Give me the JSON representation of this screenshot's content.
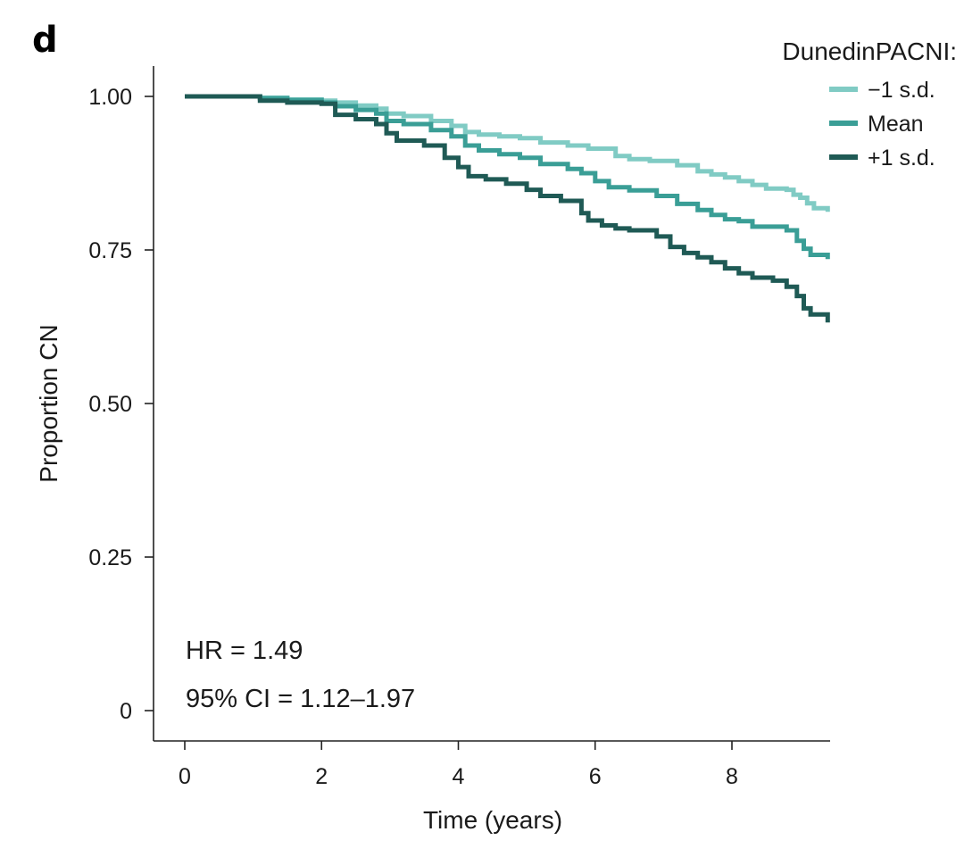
{
  "panel_label": "d",
  "chart_data": {
    "type": "line",
    "step": true,
    "xlabel": "Time (years)",
    "ylabel": "Proportion CN",
    "xlim": [
      0,
      9.4
    ],
    "ylim": [
      0,
      1.0
    ],
    "x_ticks": [
      0,
      2,
      4,
      6,
      8
    ],
    "x_tick_labels": [
      "0",
      "2",
      "4",
      "6",
      "8"
    ],
    "y_ticks": [
      0,
      0.25,
      0.5,
      0.75,
      1.0
    ],
    "y_tick_labels": [
      "0",
      "0.25",
      "0.50",
      "0.75",
      "1.00"
    ],
    "grid": false,
    "legend": {
      "title": "DunedinPACNI:",
      "position": "top-right"
    },
    "annotations": [
      "HR = 1.49",
      "95% CI = 1.12–1.97"
    ],
    "series": [
      {
        "name": "−1 s.d.",
        "color": "#80cbc4",
        "x": [
          0,
          1.0,
          1.1,
          1.5,
          2.0,
          2.2,
          2.5,
          2.8,
          2.95,
          3.2,
          3.6,
          3.9,
          4.1,
          4.3,
          4.6,
          4.9,
          5.2,
          5.6,
          5.9,
          6.3,
          6.5,
          6.8,
          7.2,
          7.5,
          7.7,
          7.9,
          8.1,
          8.3,
          8.5,
          8.8,
          8.9,
          9.0,
          9.1,
          9.2,
          9.4
        ],
        "y": [
          1.0,
          1.0,
          0.998,
          0.995,
          0.993,
          0.99,
          0.985,
          0.98,
          0.972,
          0.968,
          0.96,
          0.952,
          0.942,
          0.938,
          0.935,
          0.932,
          0.925,
          0.92,
          0.915,
          0.903,
          0.898,
          0.895,
          0.888,
          0.878,
          0.873,
          0.868,
          0.862,
          0.856,
          0.85,
          0.848,
          0.84,
          0.835,
          0.826,
          0.818,
          0.812
        ]
      },
      {
        "name": "Mean",
        "color": "#3a9e96",
        "x": [
          0,
          1.0,
          1.1,
          1.5,
          2.0,
          2.2,
          2.5,
          2.8,
          2.95,
          3.2,
          3.6,
          3.9,
          4.1,
          4.3,
          4.6,
          4.9,
          5.2,
          5.6,
          5.8,
          6.0,
          6.2,
          6.5,
          6.9,
          7.2,
          7.5,
          7.7,
          7.9,
          8.1,
          8.3,
          8.8,
          8.95,
          9.05,
          9.15,
          9.4
        ],
        "y": [
          1.0,
          1.0,
          0.997,
          0.994,
          0.99,
          0.984,
          0.978,
          0.972,
          0.96,
          0.955,
          0.945,
          0.935,
          0.92,
          0.912,
          0.906,
          0.9,
          0.89,
          0.882,
          0.875,
          0.862,
          0.852,
          0.847,
          0.838,
          0.825,
          0.815,
          0.807,
          0.8,
          0.797,
          0.788,
          0.782,
          0.765,
          0.752,
          0.742,
          0.735
        ]
      },
      {
        "name": "+1 s.d.",
        "color": "#1f5a55",
        "x": [
          0,
          1.0,
          1.1,
          1.5,
          2.0,
          2.2,
          2.5,
          2.8,
          2.95,
          3.1,
          3.5,
          3.8,
          4.0,
          4.15,
          4.4,
          4.7,
          5.0,
          5.2,
          5.5,
          5.8,
          5.9,
          6.1,
          6.3,
          6.5,
          6.9,
          7.1,
          7.3,
          7.5,
          7.7,
          7.9,
          8.1,
          8.3,
          8.6,
          8.8,
          8.95,
          9.05,
          9.15,
          9.4
        ],
        "y": [
          1.0,
          1.0,
          0.993,
          0.99,
          0.988,
          0.97,
          0.963,
          0.955,
          0.94,
          0.928,
          0.92,
          0.9,
          0.885,
          0.87,
          0.865,
          0.858,
          0.848,
          0.838,
          0.83,
          0.81,
          0.798,
          0.79,
          0.785,
          0.782,
          0.772,
          0.755,
          0.745,
          0.738,
          0.73,
          0.72,
          0.712,
          0.705,
          0.7,
          0.69,
          0.675,
          0.655,
          0.645,
          0.632
        ]
      }
    ]
  }
}
